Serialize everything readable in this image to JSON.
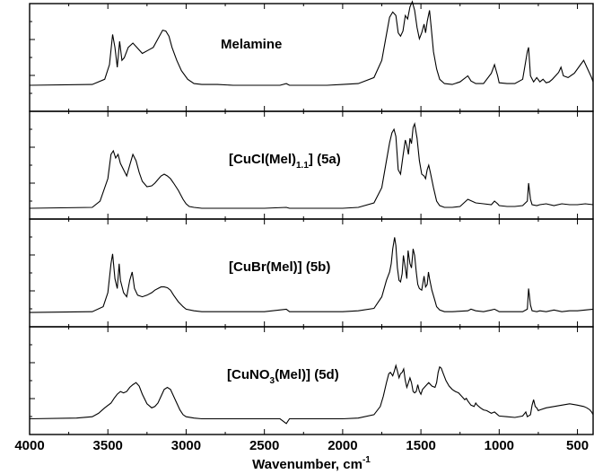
{
  "chart_data": [
    {
      "type": "line",
      "title": "Melamine",
      "xlim": [
        4000,
        400
      ],
      "series": [
        {
          "name": "Melamine",
          "x": [
            4000,
            3600,
            3520,
            3490,
            3470,
            3455,
            3440,
            3425,
            3410,
            3395,
            3370,
            3340,
            3310,
            3280,
            3240,
            3210,
            3180,
            3150,
            3130,
            3110,
            3090,
            3060,
            3030,
            2990,
            2950,
            2900,
            2800,
            2700,
            2600,
            2400,
            2360,
            2340,
            2300,
            2200,
            2100,
            2000,
            1900,
            1800,
            1750,
            1720,
            1700,
            1680,
            1660,
            1645,
            1630,
            1615,
            1600,
            1585,
            1570,
            1555,
            1540,
            1525,
            1510,
            1495,
            1480,
            1470,
            1460,
            1445,
            1435,
            1420,
            1400,
            1380,
            1350,
            1300,
            1250,
            1200,
            1180,
            1150,
            1100,
            1050,
            1030,
            1010,
            1000,
            950,
            900,
            850,
            820,
            812,
            800,
            780,
            760,
            740,
            720,
            700,
            680,
            660,
            640,
            620,
            605,
            590,
            560,
            520,
            480,
            460,
            440,
            410,
            400
          ],
          "y": [
            0.01,
            0.02,
            0.08,
            0.25,
            0.6,
            0.45,
            0.22,
            0.52,
            0.3,
            0.33,
            0.45,
            0.5,
            0.44,
            0.38,
            0.42,
            0.45,
            0.55,
            0.65,
            0.64,
            0.58,
            0.45,
            0.3,
            0.18,
            0.08,
            0.03,
            0.02,
            0.02,
            0.01,
            0.01,
            0.01,
            0.03,
            0.01,
            0.01,
            0.01,
            0.01,
            0.02,
            0.03,
            0.1,
            0.3,
            0.6,
            0.8,
            0.86,
            0.82,
            0.62,
            0.58,
            0.64,
            0.82,
            0.78,
            0.92,
            0.98,
            0.88,
            0.68,
            0.55,
            0.62,
            0.72,
            0.62,
            0.75,
            0.88,
            0.7,
            0.4,
            0.2,
            0.08,
            0.03,
            0.02,
            0.05,
            0.12,
            0.06,
            0.03,
            0.03,
            0.15,
            0.25,
            0.12,
            0.04,
            0.03,
            0.03,
            0.08,
            0.4,
            0.45,
            0.12,
            0.05,
            0.1,
            0.05,
            0.08,
            0.04,
            0.05,
            0.08,
            0.12,
            0.16,
            0.22,
            0.12,
            0.1,
            0.15,
            0.25,
            0.3,
            0.22,
            0.1,
            0.05
          ]
        }
      ]
    },
    {
      "type": "line",
      "title": "[CuCl(Mel)1.1] (5a)",
      "xlim": [
        4000,
        400
      ],
      "series": [
        {
          "name": "[CuCl(Mel)1.1] (5a)",
          "x": [
            4000,
            3600,
            3550,
            3500,
            3480,
            3465,
            3450,
            3435,
            3420,
            3400,
            3380,
            3360,
            3340,
            3320,
            3300,
            3280,
            3250,
            3220,
            3200,
            3180,
            3160,
            3140,
            3120,
            3100,
            3080,
            3050,
            3020,
            3000,
            2980,
            2950,
            2900,
            2800,
            2500,
            2360,
            2340,
            2000,
            1900,
            1800,
            1750,
            1720,
            1700,
            1685,
            1672,
            1660,
            1645,
            1630,
            1615,
            1600,
            1590,
            1580,
            1570,
            1560,
            1550,
            1540,
            1525,
            1510,
            1495,
            1480,
            1470,
            1460,
            1450,
            1440,
            1420,
            1400,
            1380,
            1350,
            1300,
            1250,
            1200,
            1150,
            1100,
            1050,
            1030,
            1010,
            1000,
            950,
            900,
            850,
            820,
            812,
            800,
            790,
            760,
            740,
            700,
            650,
            600,
            550,
            500,
            450,
            400
          ],
          "y": [
            0.02,
            0.03,
            0.1,
            0.35,
            0.62,
            0.66,
            0.58,
            0.62,
            0.52,
            0.45,
            0.38,
            0.5,
            0.62,
            0.55,
            0.42,
            0.32,
            0.26,
            0.27,
            0.3,
            0.34,
            0.38,
            0.4,
            0.38,
            0.35,
            0.3,
            0.22,
            0.12,
            0.07,
            0.04,
            0.03,
            0.02,
            0.02,
            0.02,
            0.03,
            0.02,
            0.02,
            0.03,
            0.08,
            0.25,
            0.55,
            0.75,
            0.86,
            0.9,
            0.82,
            0.45,
            0.4,
            0.6,
            0.78,
            0.72,
            0.62,
            0.8,
            0.74,
            0.92,
            0.96,
            0.8,
            0.55,
            0.4,
            0.38,
            0.35,
            0.45,
            0.5,
            0.42,
            0.25,
            0.1,
            0.05,
            0.03,
            0.03,
            0.04,
            0.12,
            0.08,
            0.07,
            0.06,
            0.1,
            0.07,
            0.05,
            0.04,
            0.04,
            0.05,
            0.1,
            0.3,
            0.12,
            0.06,
            0.05,
            0.06,
            0.07,
            0.05,
            0.07,
            0.06,
            0.06,
            0.07,
            0.06
          ]
        }
      ]
    },
    {
      "type": "line",
      "title": "[CuBr(Mel)] (5b)",
      "xlim": [
        4000,
        400
      ],
      "series": [
        {
          "name": "[CuBr(Mel)] (5b)",
          "x": [
            4000,
            3600,
            3530,
            3500,
            3480,
            3470,
            3455,
            3440,
            3428,
            3420,
            3400,
            3380,
            3360,
            3345,
            3330,
            3310,
            3280,
            3250,
            3220,
            3200,
            3180,
            3160,
            3140,
            3120,
            3100,
            3080,
            3050,
            3020,
            3000,
            2950,
            2900,
            2800,
            2500,
            2360,
            2340,
            2000,
            1900,
            1800,
            1750,
            1720,
            1700,
            1690,
            1680,
            1668,
            1660,
            1650,
            1640,
            1630,
            1620,
            1612,
            1600,
            1590,
            1582,
            1570,
            1560,
            1550,
            1540,
            1530,
            1520,
            1510,
            1495,
            1480,
            1470,
            1460,
            1452,
            1445,
            1430,
            1410,
            1400,
            1380,
            1350,
            1300,
            1200,
            1180,
            1150,
            1100,
            1050,
            1030,
            1010,
            1000,
            950,
            900,
            850,
            820,
            812,
            800,
            790,
            760,
            740,
            700,
            650,
            600,
            550,
            500,
            450,
            400
          ],
          "y": [
            0.01,
            0.02,
            0.08,
            0.25,
            0.6,
            0.72,
            0.42,
            0.3,
            0.6,
            0.4,
            0.25,
            0.2,
            0.4,
            0.5,
            0.3,
            0.22,
            0.2,
            0.22,
            0.25,
            0.28,
            0.3,
            0.32,
            0.32,
            0.31,
            0.28,
            0.22,
            0.14,
            0.08,
            0.05,
            0.03,
            0.02,
            0.02,
            0.02,
            0.05,
            0.02,
            0.02,
            0.03,
            0.06,
            0.2,
            0.4,
            0.5,
            0.6,
            0.78,
            0.92,
            0.82,
            0.55,
            0.4,
            0.38,
            0.48,
            0.7,
            0.55,
            0.42,
            0.76,
            0.6,
            0.55,
            0.78,
            0.7,
            0.5,
            0.35,
            0.3,
            0.28,
            0.45,
            0.32,
            0.35,
            0.5,
            0.42,
            0.28,
            0.15,
            0.08,
            0.04,
            0.02,
            0.02,
            0.03,
            0.05,
            0.03,
            0.02,
            0.04,
            0.05,
            0.03,
            0.02,
            0.02,
            0.02,
            0.02,
            0.05,
            0.3,
            0.1,
            0.03,
            0.02,
            0.03,
            0.02,
            0.04,
            0.02,
            0.03,
            0.03,
            0.04,
            0.05
          ]
        }
      ]
    },
    {
      "type": "line",
      "title": "[CuNO3(Mel)] (5d)",
      "xlim": [
        4000,
        400
      ],
      "series": [
        {
          "name": "[CuNO3(Mel)] (5d)",
          "x": [
            4000,
            3700,
            3600,
            3560,
            3520,
            3480,
            3460,
            3440,
            3420,
            3400,
            3380,
            3360,
            3340,
            3320,
            3300,
            3280,
            3250,
            3220,
            3200,
            3180,
            3160,
            3140,
            3120,
            3100,
            3080,
            3060,
            3040,
            3020,
            3000,
            2950,
            2900,
            2800,
            2600,
            2400,
            2360,
            2340,
            2300,
            2000,
            1900,
            1800,
            1760,
            1740,
            1720,
            1705,
            1695,
            1680,
            1670,
            1660,
            1650,
            1640,
            1630,
            1620,
            1610,
            1600,
            1590,
            1580,
            1570,
            1560,
            1550,
            1540,
            1530,
            1520,
            1510,
            1500,
            1490,
            1470,
            1450,
            1430,
            1410,
            1400,
            1390,
            1380,
            1370,
            1360,
            1340,
            1320,
            1300,
            1280,
            1260,
            1240,
            1220,
            1210,
            1200,
            1180,
            1160,
            1150,
            1140,
            1120,
            1100,
            1080,
            1050,
            1030,
            1010,
            1000,
            950,
            900,
            850,
            830,
            820,
            800,
            790,
            780,
            770,
            760,
            750,
            740,
            700,
            650,
            600,
            550,
            500,
            460,
            440,
            420,
            410,
            400
          ],
          "y": [
            0.02,
            0.03,
            0.05,
            0.1,
            0.18,
            0.25,
            0.32,
            0.38,
            0.42,
            0.4,
            0.42,
            0.48,
            0.52,
            0.55,
            0.5,
            0.38,
            0.24,
            0.18,
            0.2,
            0.25,
            0.35,
            0.45,
            0.48,
            0.45,
            0.35,
            0.25,
            0.15,
            0.08,
            0.05,
            0.03,
            0.02,
            0.02,
            0.02,
            0.02,
            -0.05,
            0.02,
            0.02,
            0.02,
            0.03,
            0.08,
            0.2,
            0.35,
            0.55,
            0.68,
            0.7,
            0.65,
            0.72,
            0.8,
            0.72,
            0.62,
            0.68,
            0.7,
            0.75,
            0.58,
            0.48,
            0.55,
            0.62,
            0.55,
            0.42,
            0.4,
            0.42,
            0.52,
            0.42,
            0.38,
            0.45,
            0.5,
            0.55,
            0.5,
            0.48,
            0.55,
            0.7,
            0.78,
            0.76,
            0.7,
            0.58,
            0.5,
            0.45,
            0.42,
            0.4,
            0.35,
            0.3,
            0.32,
            0.28,
            0.22,
            0.2,
            0.25,
            0.22,
            0.18,
            0.15,
            0.14,
            0.1,
            0.12,
            0.08,
            0.06,
            0.05,
            0.04,
            0.06,
            0.12,
            0.05,
            0.08,
            0.22,
            0.3,
            0.2,
            0.18,
            0.14,
            0.15,
            0.18,
            0.2,
            0.22,
            0.24,
            0.22,
            0.2,
            0.18,
            0.15,
            0.12,
            0.08
          ]
        }
      ]
    }
  ],
  "x_axis": {
    "label_main": "Wavenumber, cm",
    "label_sup": "-1",
    "ticks": [
      4000,
      3500,
      3000,
      2500,
      2000,
      1500,
      1000,
      500
    ]
  },
  "labels": {
    "melamine": "Melamine",
    "cucl_pre": "[CuCl(Mel)",
    "cucl_sub": "1.1",
    "cucl_post": "] (5a)",
    "cubr": "[CuBr(Mel)] (5b)",
    "cuno3_pre": "[CuNO",
    "cuno3_sub": "3",
    "cuno3_post": "(Mel)] (5d)"
  }
}
